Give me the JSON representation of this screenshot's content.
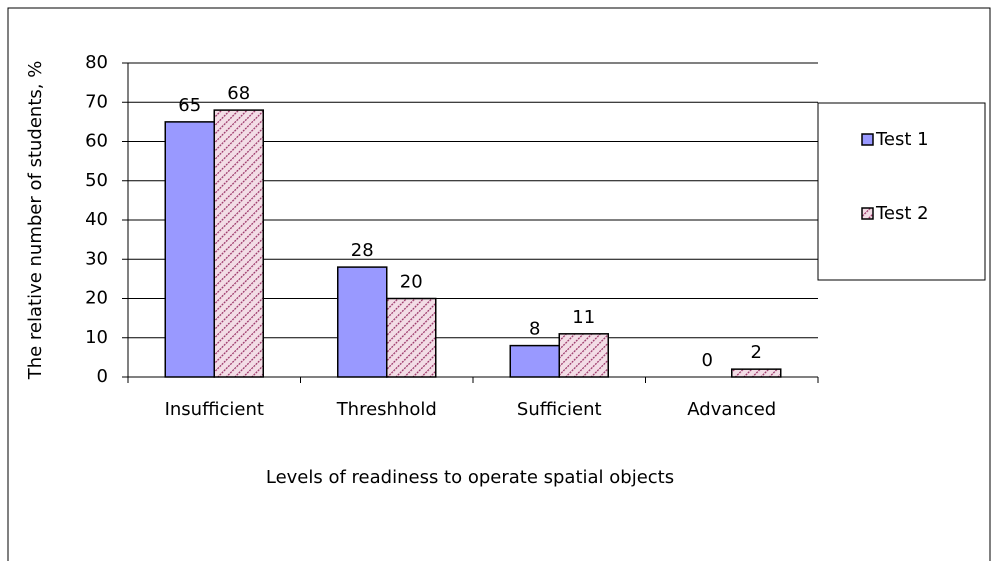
{
  "chart_data": {
    "type": "bar",
    "categories": [
      "Insufficient",
      "Threshhold",
      "Sufficient",
      "Advanced"
    ],
    "series": [
      {
        "name": "Test 1",
        "color": "#9999ff",
        "values": [
          65,
          28,
          8,
          0
        ]
      },
      {
        "name": "Test 2",
        "color": "#993366",
        "pattern": "diagonal",
        "values": [
          68,
          20,
          11,
          2
        ]
      }
    ],
    "x_label": "Levels of readiness to operate spatial objects",
    "y_label": "The relative number of students, %",
    "ylim": [
      0,
      80
    ],
    "yticks": [
      0,
      10,
      20,
      30,
      40,
      50,
      60,
      70,
      80
    ],
    "grid": true,
    "legend": "right"
  }
}
